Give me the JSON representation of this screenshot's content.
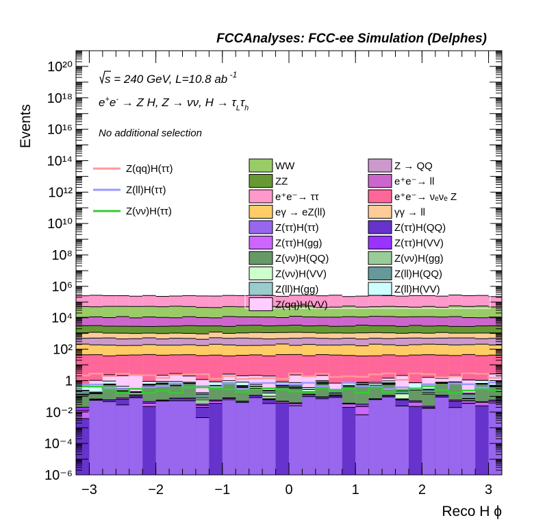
{
  "chart_data": {
    "type": "histogram",
    "title": "FCCAnalyses: FCC-ee Simulation (Delphes)",
    "annotations": {
      "energy_lumi": "√s = 240 GeV, L=10.8 ab⁻¹",
      "process": "e⁺e⁻ → Z H, Z → νν, H → τ_L τ_h",
      "selection": "No additional selection"
    },
    "xlabel": "Reco H ϕ",
    "ylabel": "Events",
    "xlim": [
      -3.2,
      3.2
    ],
    "ylim": [
      1e-06,
      1e+21
    ],
    "log_y": true,
    "x_ticks": [
      "−3",
      "−2",
      "−1",
      "0",
      "1",
      "2",
      "3"
    ],
    "y_ticks": [
      "10⁻⁶",
      "10⁻⁴",
      "10⁻²",
      "1",
      "10²",
      "10⁴",
      "10⁶",
      "10⁸",
      "10¹⁰",
      "10¹²",
      "10¹⁴",
      "10¹⁶",
      "10¹⁸",
      "10²⁰"
    ],
    "n_bins": 32,
    "stacked_backgrounds": [
      {
        "name": "WW",
        "color": "#99cc66",
        "level": 40000.0
      },
      {
        "name": "ZZ",
        "color": "#669933",
        "level": 2000.0
      },
      {
        "name": "e⁺e⁻→ ττ",
        "color": "#ff99cc",
        "level": 200000.0
      },
      {
        "name": "eγ → eZ(ll)",
        "color": "#ffcc66",
        "level": 150
      },
      {
        "name": "Z → QQ",
        "color": "#cc99cc",
        "level": 300
      },
      {
        "name": "e⁺e⁻→ ll",
        "color": "#cc66cc",
        "level": 8000.0
      },
      {
        "name": "e⁺e⁻→ νₑνₑ Z",
        "color": "#ff6699",
        "level": 40
      },
      {
        "name": "γγ → ll",
        "color": "#ffcc99",
        "level": 600
      }
    ],
    "stacked_signals": [
      {
        "name": "Z(ττ)H(ττ)",
        "color": "#9966ee",
        "level": 0.05
      },
      {
        "name": "Z(ττ)H(QQ)",
        "color": "#6633cc",
        "level": 0.02
      },
      {
        "name": "Z(ττ)H(gg)",
        "color": "#cc66ff",
        "level": 0.01
      },
      {
        "name": "Z(ττ)H(VV)",
        "color": "#9933ff",
        "level": 0.005
      },
      {
        "name": "Z(νν)H(QQ)",
        "color": "#669966",
        "level": 0.3
      },
      {
        "name": "Z(νν)H(gg)",
        "color": "#99cc99",
        "level": 0.02
      },
      {
        "name": "Z(νν)H(VV)",
        "color": "#ccffcc",
        "level": 0.05
      },
      {
        "name": "Z(ll)H(QQ)",
        "color": "#669999",
        "level": 0.05
      },
      {
        "name": "Z(ll)H(gg)",
        "color": "#99cccc",
        "level": 0.02
      },
      {
        "name": "Z(ll)H(VV)",
        "color": "#ccffff",
        "level": 0.2
      },
      {
        "name": "Z(qq)H(VV)",
        "color": "#ffccff",
        "level": 1.0
      }
    ],
    "signal_lines": [
      {
        "name": "Z(qq)H(ττ)",
        "color": "#ff9999",
        "level": 2.0
      },
      {
        "name": "Z(ll)H(ττ)",
        "color": "#9999ff",
        "level": 0.5
      },
      {
        "name": "Z(νν)H(ττ)",
        "color": "#33cc33",
        "level": 0.3
      }
    ],
    "legend": {
      "lines_position": "left",
      "fills_position": "upper-center",
      "fills_order": [
        "WW",
        "Z → QQ",
        "ZZ",
        "e⁺e⁻→ ll",
        "e⁺e⁻→ ττ",
        "e⁺e⁻→ νₑνₑ Z",
        "eγ → eZ(ll)",
        "γγ → ll",
        "Z(ττ)H(ττ)",
        "Z(ττ)H(QQ)",
        "Z(ττ)H(gg)",
        "Z(ττ)H(VV)",
        "Z(νν)H(QQ)",
        "Z(νν)H(gg)",
        "Z(νν)H(VV)",
        "Z(ll)H(QQ)",
        "Z(ll)H(gg)",
        "Z(ll)H(VV)",
        "Z(qq)H(VV)"
      ]
    }
  }
}
